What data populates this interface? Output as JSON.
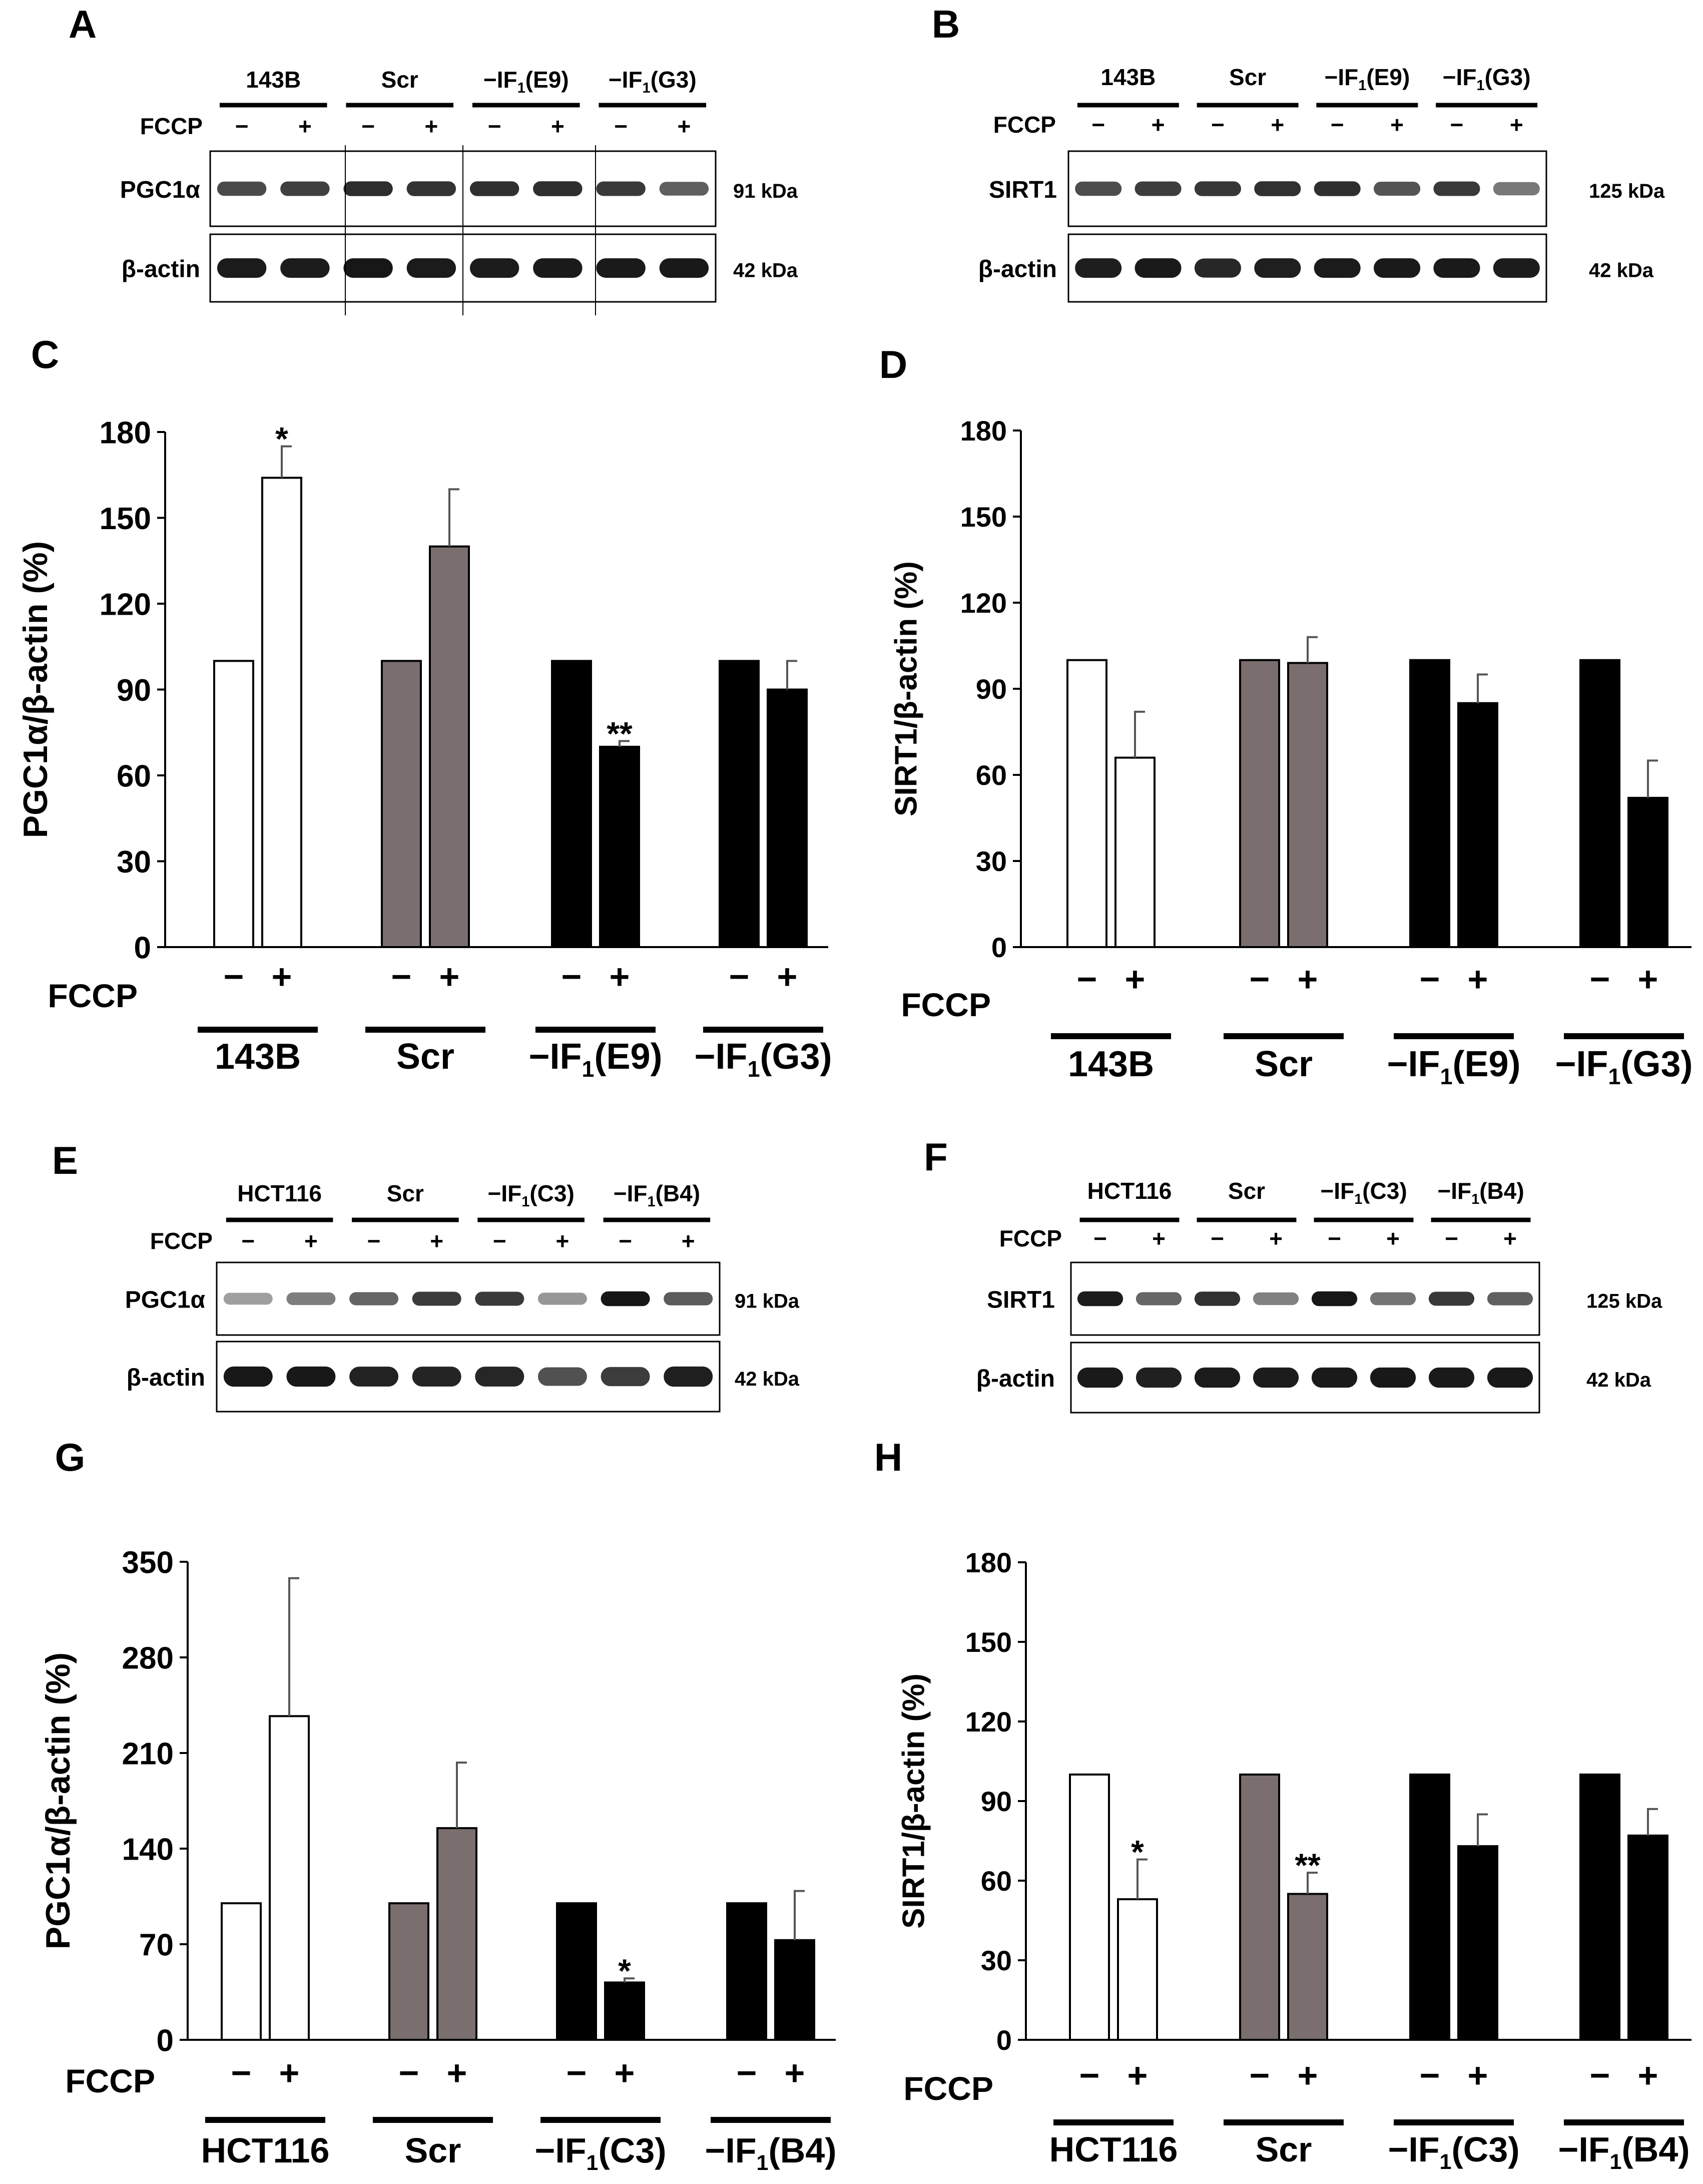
{
  "panels": {
    "A": {
      "letter": "A",
      "groups": [
        "143B",
        "Scr",
        "−IF1(E9)",
        "−IF1(G3)"
      ],
      "fccp_label": "FCCP",
      "minus": "−",
      "plus": "+",
      "rows": [
        {
          "label": "PGC1α",
          "kda": "91 kDa"
        },
        {
          "label": "β-actin",
          "kda": "42 kDa"
        }
      ]
    },
    "B": {
      "letter": "B",
      "groups": [
        "143B",
        "Scr",
        "−IF1(E9)",
        "−IF1(G3)"
      ],
      "fccp_label": "FCCP",
      "minus": "−",
      "plus": "+",
      "rows": [
        {
          "label": "SIRT1",
          "kda": "125 kDa"
        },
        {
          "label": "β-actin",
          "kda": "42 kDa"
        }
      ]
    },
    "E": {
      "letter": "E",
      "groups": [
        "HCT116",
        "Scr",
        "−IF1(C3)",
        "−IF1(B4)"
      ],
      "fccp_label": "FCCP",
      "minus": "−",
      "plus": "+",
      "rows": [
        {
          "label": "PGC1α",
          "kda": "91 kDa"
        },
        {
          "label": "β-actin",
          "kda": "42 kDa"
        }
      ]
    },
    "F": {
      "letter": "F",
      "groups": [
        "HCT116",
        "Scr",
        "−IF1(C3)",
        "−IF1(B4)"
      ],
      "fccp_label": "FCCP",
      "minus": "−",
      "plus": "+",
      "rows": [
        {
          "label": "SIRT1",
          "kda": "125 kDa"
        },
        {
          "label": "β-actin",
          "kda": "42 kDa"
        }
      ]
    }
  },
  "chart_data": [
    {
      "id": "C",
      "letter": "C",
      "type": "bar",
      "ylabel": "PGC1α/β-actin (%)",
      "ylim": [
        0,
        180
      ],
      "yticks": [
        0,
        30,
        60,
        90,
        120,
        150,
        180
      ],
      "fccp_label": "FCCP",
      "categories": [
        "143B",
        "Scr",
        "−IF1(E9)",
        "−IF1(G3)"
      ],
      "fill_colors": [
        "#ffffff",
        "#7a6e6e",
        "#000000",
        "#000000"
      ],
      "series": [
        {
          "name": "−",
          "values": [
            100,
            100,
            100,
            100
          ],
          "errors": [
            0,
            0,
            0,
            0
          ],
          "sig": [
            "",
            "",
            "",
            ""
          ]
        },
        {
          "name": "+",
          "values": [
            164,
            140,
            70,
            90
          ],
          "errors": [
            11,
            20,
            2,
            10
          ],
          "sig": [
            "*",
            "",
            "**",
            ""
          ]
        }
      ]
    },
    {
      "id": "D",
      "letter": "D",
      "type": "bar",
      "ylabel": "SIRT1/β-actin (%)",
      "ylim": [
        0,
        180
      ],
      "yticks": [
        0,
        30,
        60,
        90,
        120,
        150,
        180
      ],
      "fccp_label": "FCCP",
      "categories": [
        "143B",
        "Scr",
        "−IF1(E9)",
        "−IF1(G3)"
      ],
      "fill_colors": [
        "#ffffff",
        "#7a6e6e",
        "#000000",
        "#000000"
      ],
      "series": [
        {
          "name": "−",
          "values": [
            100,
            100,
            100,
            100
          ],
          "errors": [
            0,
            0,
            0,
            0
          ],
          "sig": [
            "",
            "",
            "",
            ""
          ]
        },
        {
          "name": "+",
          "values": [
            66,
            99,
            85,
            52
          ],
          "errors": [
            16,
            9,
            10,
            13
          ],
          "sig": [
            "",
            "",
            "",
            ""
          ]
        }
      ]
    },
    {
      "id": "G",
      "letter": "G",
      "type": "bar",
      "ylabel": "PGC1α/β-actin (%)",
      "ylim": [
        0,
        350
      ],
      "yticks": [
        0,
        70,
        140,
        210,
        280,
        350
      ],
      "fccp_label": "FCCP",
      "categories": [
        "HCT116",
        "Scr",
        "−IF1(C3)",
        "−IF1(B4)"
      ],
      "fill_colors": [
        "#ffffff",
        "#7a6e6e",
        "#000000",
        "#000000"
      ],
      "series": [
        {
          "name": "−",
          "values": [
            100,
            100,
            100,
            100
          ],
          "errors": [
            0,
            0,
            0,
            0
          ],
          "sig": [
            "",
            "",
            "",
            ""
          ]
        },
        {
          "name": "+",
          "values": [
            237,
            155,
            42,
            73
          ],
          "errors": [
            101,
            48,
            3,
            36
          ],
          "sig": [
            "",
            "",
            "*",
            ""
          ]
        }
      ]
    },
    {
      "id": "H",
      "letter": "H",
      "type": "bar",
      "ylabel": "SIRT1/β-actin (%)",
      "ylim": [
        0,
        180
      ],
      "yticks": [
        0,
        30,
        60,
        90,
        120,
        150,
        180
      ],
      "fccp_label": "FCCP",
      "categories": [
        "HCT116",
        "Scr",
        "−IF1(C3)",
        "−IF1(B4)"
      ],
      "fill_colors": [
        "#ffffff",
        "#7a6e6e",
        "#000000",
        "#000000"
      ],
      "series": [
        {
          "name": "−",
          "values": [
            100,
            100,
            100,
            100
          ],
          "errors": [
            0,
            0,
            0,
            0
          ],
          "sig": [
            "",
            "",
            "",
            ""
          ]
        },
        {
          "name": "+",
          "values": [
            53,
            55,
            73,
            77
          ],
          "errors": [
            15,
            8,
            12,
            10
          ],
          "sig": [
            "*",
            "**",
            "",
            ""
          ]
        }
      ]
    }
  ]
}
